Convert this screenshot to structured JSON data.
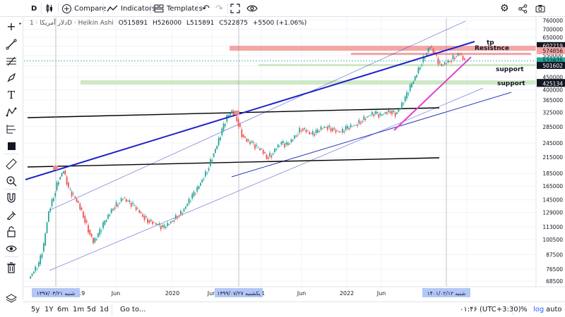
{
  "toolbar": {
    "symbol": "D",
    "compare_label": "Compare",
    "indicators_label": "Indicators",
    "templates_label": "Templates"
  },
  "legend": {
    "title": "دلار آمریکا · 1D · Heikin Ashi",
    "open": "O515891",
    "high": "H526000",
    "low": "L515891",
    "close": "C522875",
    "change": "+5500 (+1.06%)"
  },
  "colors": {
    "up": "#26a69a",
    "down": "#ef5350",
    "trend_blue": "#1e22c8",
    "channel": "#2d3bb8",
    "magenta": "#e040d0",
    "resistance_band": "#f4a5a5",
    "support_band": "#cfe8c6"
  },
  "chart_data": {
    "type": "candlestick",
    "y_ticks": [
      "760000",
      "700000",
      "650000",
      "600000",
      "550000",
      "500000",
      "450000",
      "400000",
      "365000",
      "325000",
      "285000",
      "245000",
      "215000",
      "185000",
      "165000",
      "145000",
      "129000",
      "113000",
      "100500",
      "87500",
      "76500",
      "68500"
    ],
    "x_ticks": [
      "2019",
      "Jun",
      "2020",
      "Jun",
      "21",
      "Jun",
      "2022",
      "Jun",
      "5"
    ],
    "x_range": [
      "2018-06",
      "2023-06"
    ],
    "series": [
      {
        "values": [
          70000,
          75000,
          80000,
          95000,
          130000,
          150000,
          175000,
          190000,
          160000,
          150000,
          140000,
          125000,
          110000,
          98000,
          105000,
          115000,
          125000,
          135000,
          140000,
          148000,
          142000,
          138000,
          132000,
          125000,
          120000,
          118000,
          115000,
          112000,
          115000,
          120000,
          125000,
          130000,
          140000,
          150000,
          160000,
          175000,
          190000,
          215000,
          240000,
          275000,
          310000,
          330000,
          305000,
          265000,
          250000,
          245000,
          235000,
          230000,
          215000,
          220000,
          235000,
          245000,
          240000,
          250000,
          265000,
          280000,
          275000,
          265000,
          270000,
          280000,
          285000,
          280000,
          275000,
          270000,
          280000,
          285000,
          290000,
          300000,
          310000,
          318000,
          322000,
          315000,
          325000,
          330000,
          320000,
          340000,
          370000,
          410000,
          450000,
          500000,
          550000,
          600000,
          555000,
          500000,
          510000,
          525000,
          545000,
          560000,
          522875
        ]
      }
    ],
    "price_labels": [
      {
        "text": "602219",
        "color": "#131722"
      },
      {
        "text": "574856",
        "color": "#f4a5a5"
      },
      {
        "text": "522875",
        "color": "#26a69a"
      },
      {
        "text": "501602",
        "color": "#131722"
      },
      {
        "text": "428363",
        "color": "#131722"
      },
      {
        "text": "425134",
        "color": "#131722"
      }
    ],
    "annotations": [
      "tp",
      "Resistnce",
      "support",
      "support"
    ],
    "date_labels": [
      "۱۳۹۷/۰۳/۲۱ شنبه",
      "۱۳۹۹/۰۷/۲۷ یکشنبه",
      "۱۴۰۱/۰۲/۱۲ شنبه"
    ]
  },
  "bottom": {
    "ranges": [
      "5y",
      "1Y",
      "6m",
      "1m",
      "5d",
      "1d"
    ],
    "goto": "Go to...",
    "time": "۰۱:۴۶ (UTC+3:30)",
    "percent": "%",
    "log": "log",
    "auto": "auto"
  }
}
